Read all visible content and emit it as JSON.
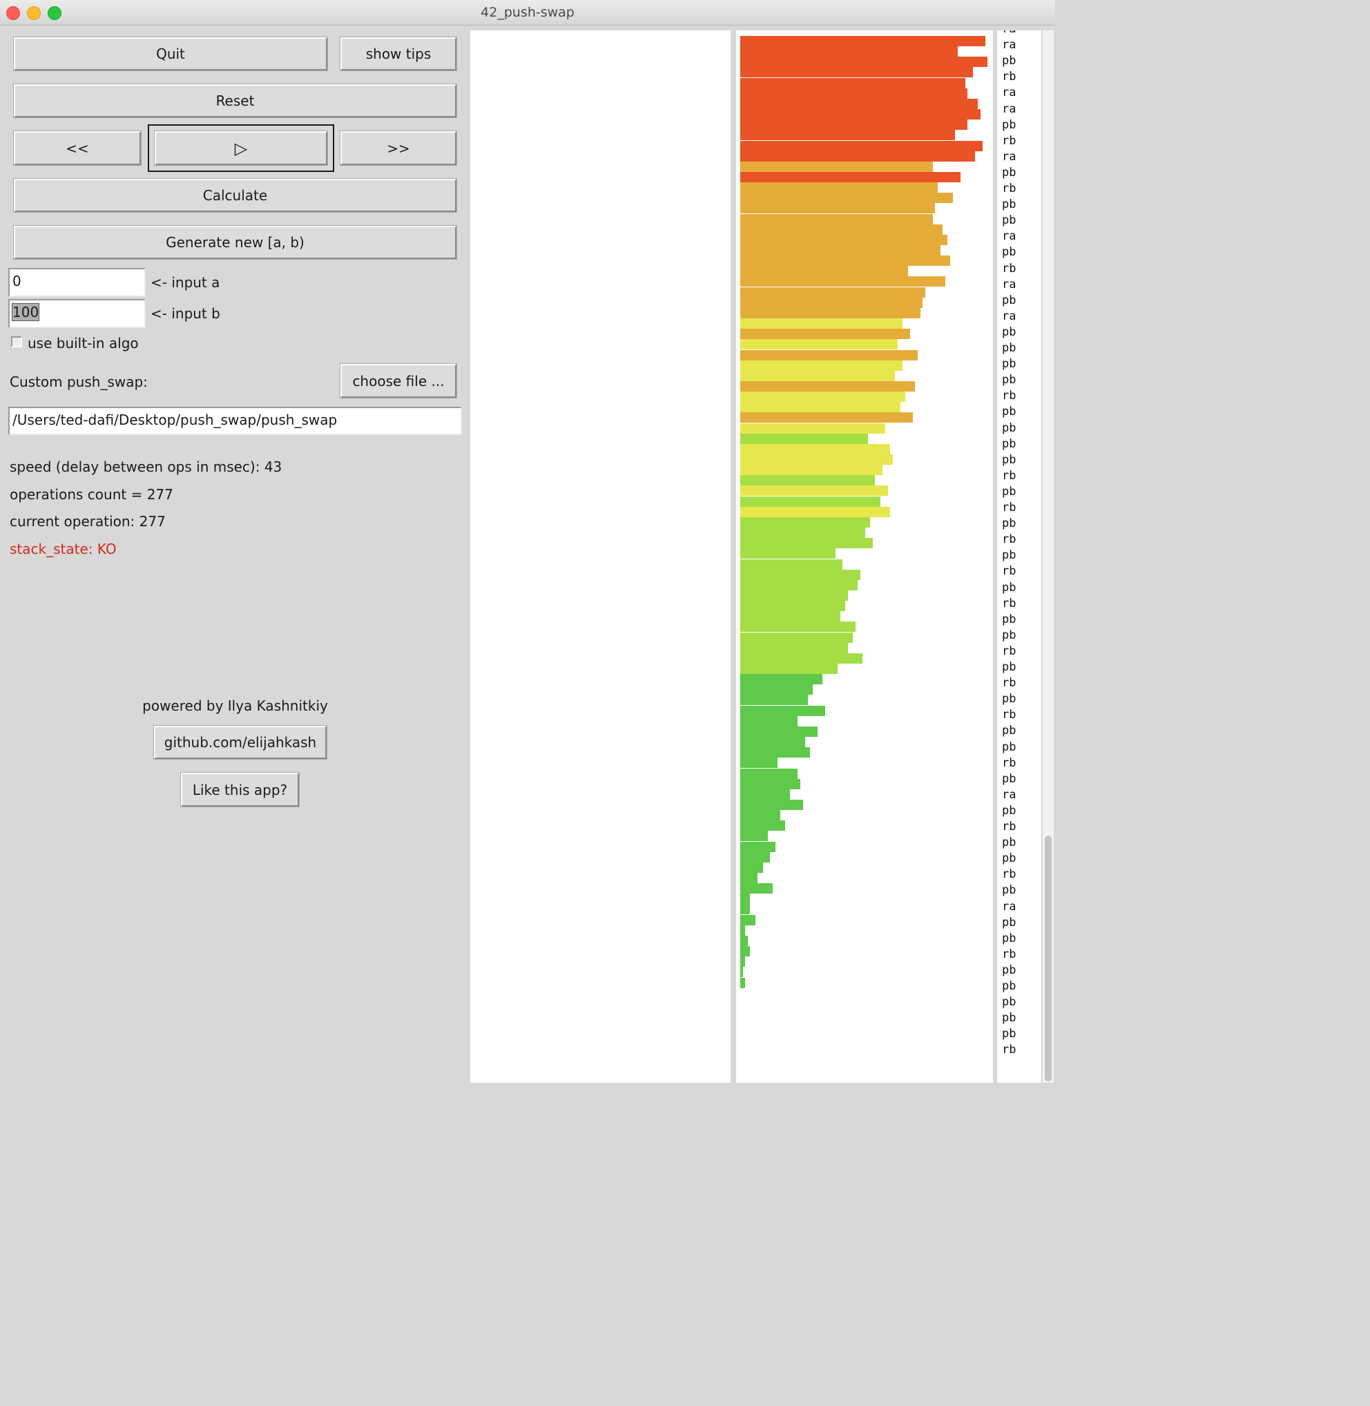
{
  "window": {
    "title": "42_push-swap"
  },
  "controls": {
    "quit": "Quit",
    "show_tips": "show tips",
    "reset": "Reset",
    "prev": "<<",
    "play": "▷",
    "next": ">>",
    "calculate": "Calculate",
    "generate": "Generate new [a, b)"
  },
  "inputs": {
    "a_value": "0",
    "a_label": "<- input a",
    "b_value": "100",
    "b_label": "<- input b",
    "builtin_label": "use built-in algo",
    "builtin_checked": false
  },
  "custom": {
    "label": "Custom push_swap:",
    "choose_file": "choose file ...",
    "path": "/Users/ted-dafi/Desktop/push_swap/push_swap"
  },
  "status": {
    "speed": "speed (delay between ops in msec): 43",
    "ops_count": "operations count = 277",
    "current_op": "current operation: 277",
    "stack_state": "stack_state: KO",
    "ko_color": "#d12a1e"
  },
  "footer": {
    "powered": "powered by Ilya Kashnitkiy",
    "github": "github.com/elijahkash",
    "like": "Like this app?"
  },
  "stack_b": [
    97,
    86,
    98,
    92,
    89,
    90,
    94,
    95,
    90,
    85,
    96,
    93,
    76,
    87,
    78,
    84,
    77,
    76,
    80,
    82,
    79,
    83,
    66,
    81,
    73,
    72,
    71,
    64,
    67,
    62,
    70,
    64,
    61,
    69,
    65,
    63,
    68,
    57,
    50,
    59,
    60,
    56,
    53,
    58,
    55,
    59,
    51,
    49,
    52,
    37,
    40,
    47,
    46,
    42,
    41,
    39,
    45,
    44,
    42,
    48,
    38,
    32,
    28,
    26,
    33,
    22,
    30,
    25,
    27,
    14,
    22,
    23,
    19,
    24,
    15,
    17,
    10,
    13,
    11,
    8,
    6,
    12,
    3,
    3,
    5,
    1,
    2,
    3,
    1,
    0,
    1
  ],
  "stack_b_colors": {
    "high": "#e95325",
    "mid": "#e5ac3a",
    "low": "#e6e74c",
    "lower": "#a5dd45",
    "bottom": "#5ec94a"
  },
  "ops_list": [
    "ra",
    "ra",
    "pb",
    "rb",
    "ra",
    "ra",
    "pb",
    "rb",
    "ra",
    "pb",
    "rb",
    "pb",
    "pb",
    "ra",
    "pb",
    "rb",
    "ra",
    "pb",
    "ra",
    "pb",
    "pb",
    "pb",
    "pb",
    "rb",
    "pb",
    "pb",
    "pb",
    "pb",
    "rb",
    "pb",
    "rb",
    "pb",
    "rb",
    "pb",
    "rb",
    "pb",
    "rb",
    "pb",
    "pb",
    "rb",
    "pb",
    "rb",
    "pb",
    "rb",
    "pb",
    "pb",
    "rb",
    "pb",
    "ra",
    "pb",
    "rb",
    "pb",
    "pb",
    "rb",
    "pb",
    "ra",
    "pb",
    "pb",
    "rb",
    "pb",
    "pb",
    "pb",
    "pb",
    "pb",
    "rb"
  ]
}
